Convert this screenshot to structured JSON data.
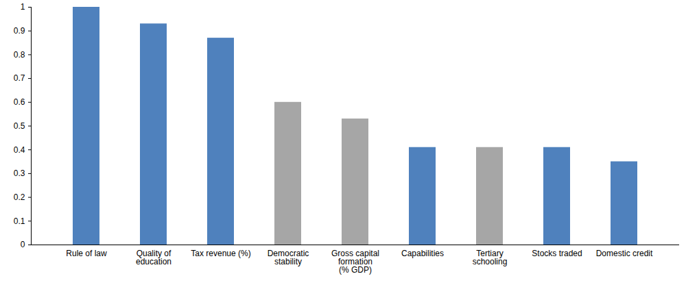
{
  "chart_data": {
    "type": "bar",
    "categories": [
      "Rule of law",
      "Quality of\neducation",
      "Tax revenue (%)",
      "Democratic\nstability",
      "Gross capital\nformation\n(% GDP)",
      "Capabilities",
      "Tertiary\nschooling",
      "Stocks traded",
      "Domestic credit"
    ],
    "values": [
      1.0,
      0.93,
      0.87,
      0.6,
      0.53,
      0.41,
      0.41,
      0.41,
      0.35
    ],
    "colors": [
      "#4f81bd",
      "#4f81bd",
      "#4f81bd",
      "#a6a6a6",
      "#a6a6a6",
      "#4f81bd",
      "#a6a6a6",
      "#4f81bd",
      "#4f81bd"
    ],
    "ylim": [
      0,
      1
    ],
    "yticks": [
      0,
      0.1,
      0.2,
      0.3,
      0.4,
      0.5,
      0.6,
      0.7,
      0.8,
      0.9,
      1
    ],
    "grid": false
  }
}
